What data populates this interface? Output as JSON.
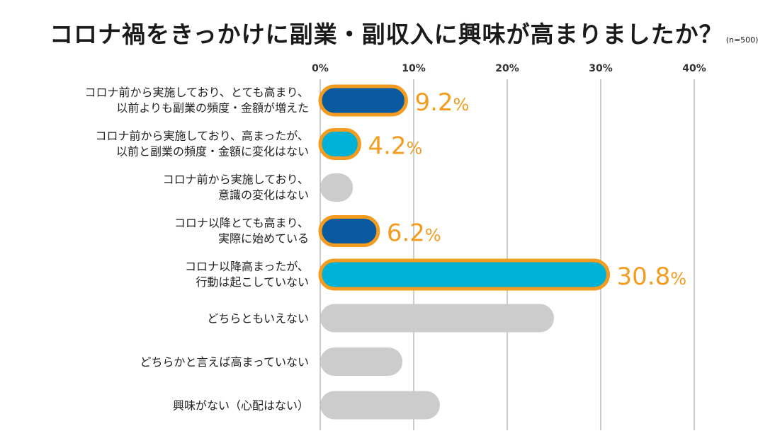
{
  "chart_data": {
    "type": "bar",
    "orientation": "horizontal",
    "title": "コロナ禍をきっかけに副業・副収入に興味が高まりましたか？",
    "sample_note": "(n=500)",
    "xlim": [
      0,
      40
    ],
    "ticks": [
      0,
      10,
      20,
      30,
      40
    ],
    "tick_labels": [
      "0%",
      "10%",
      "20%",
      "30%",
      "40%"
    ],
    "grid": true,
    "categories": [
      [
        "コロナ前から実施しており、とても高まり、",
        "以前よりも副業の頻度・金額が増えた"
      ],
      [
        "コロナ前から実施しており、高まったが、",
        "以前と副業の頻度・金額に変化はない"
      ],
      [
        "コロナ前から実施しており、",
        "意識の変化はない"
      ],
      [
        "コロナ以降とても高まり、",
        "実際に始めている"
      ],
      [
        "コロナ以降高まったが、",
        "行動は起こしていない"
      ],
      [
        "どちらともいえない"
      ],
      [
        "どちらかと言えば高まっていない"
      ],
      [
        "興味がない（心配はない）"
      ]
    ],
    "values": [
      9.2,
      4.2,
      3.5,
      6.2,
      30.8,
      25.0,
      8.8,
      12.8
    ],
    "labels": [
      "9.2%",
      "4.2%",
      "",
      "6.2%",
      "30.8%",
      "",
      "",
      ""
    ],
    "fill_colors": [
      "#0a5aa0",
      "#00b1d6",
      "#cccccc",
      "#0a5aa0",
      "#00b1d6",
      "#cccccc",
      "#cccccc",
      "#cccccc"
    ],
    "highlight_color": "#f39c1f",
    "grid_color": "#9a9a9a"
  }
}
